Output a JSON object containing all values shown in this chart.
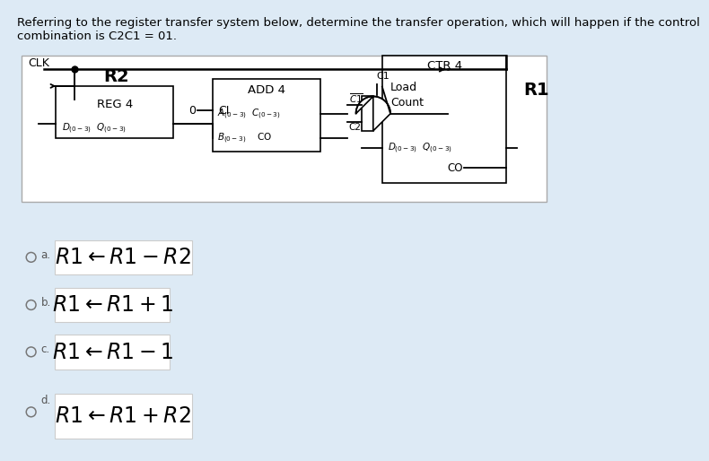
{
  "bg_color": "#ddeaf5",
  "title_text": "Referring to the register transfer system below, determine the transfer operation, which will happen if the control\ncombination is C2C1 = 01.",
  "title_fontsize": 9.5,
  "options": [
    {
      "label": "a.",
      "text": "$R1 \\leftarrow R1 - R2$"
    },
    {
      "label": "b.",
      "text": "$R1 \\leftarrow R1 + 1$"
    },
    {
      "label": "c.",
      "text": "$R1 \\leftarrow R1 - 1$"
    },
    {
      "label": "d.",
      "text": "$R1 \\leftarrow R1 + R2$"
    }
  ],
  "option_fontsize": 17,
  "option_label_fontsize": 9,
  "radio_color": "#888888",
  "diag_bg": "#ffffff",
  "diag_border": "#999999"
}
